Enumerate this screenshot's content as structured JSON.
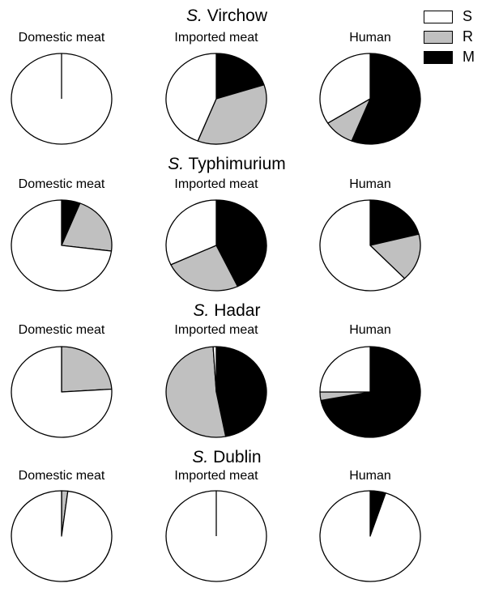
{
  "legend": [
    {
      "key": "S",
      "color": "#ffffff"
    },
    {
      "key": "R",
      "color": "#c0c0c0"
    },
    {
      "key": "M",
      "color": "#000000"
    }
  ],
  "chart_data": [
    {
      "type": "pie",
      "title_prefix": "S.",
      "title_name": "Virchow",
      "pies": [
        {
          "label": "Domestic meat",
          "slices": [
            {
              "category": "S",
              "value": 100
            },
            {
              "category": "R",
              "value": 0
            },
            {
              "category": "M",
              "value": 0
            }
          ]
        },
        {
          "label": "Imported meat",
          "slices": [
            {
              "category": "S",
              "value": 44
            },
            {
              "category": "R",
              "value": 36
            },
            {
              "category": "M",
              "value": 20
            }
          ]
        },
        {
          "label": "Human",
          "slices": [
            {
              "category": "S",
              "value": 34
            },
            {
              "category": "R",
              "value": 10
            },
            {
              "category": "M",
              "value": 56
            }
          ]
        }
      ]
    },
    {
      "type": "pie",
      "title_prefix": "S.",
      "title_name": "Typhimurium",
      "pies": [
        {
          "label": "Domestic meat",
          "slices": [
            {
              "category": "S",
              "value": 73
            },
            {
              "category": "R",
              "value": 21
            },
            {
              "category": "M",
              "value": 6
            }
          ]
        },
        {
          "label": "Imported meat",
          "slices": [
            {
              "category": "S",
              "value": 32
            },
            {
              "category": "R",
              "value": 25
            },
            {
              "category": "M",
              "value": 43
            }
          ]
        },
        {
          "label": "Human",
          "slices": [
            {
              "category": "S",
              "value": 62
            },
            {
              "category": "R",
              "value": 17
            },
            {
              "category": "M",
              "value": 21
            }
          ]
        }
      ]
    },
    {
      "type": "pie",
      "title_prefix": "S.",
      "title_name": "Hadar",
      "pies": [
        {
          "label": "Domestic meat",
          "slices": [
            {
              "category": "S",
              "value": 76
            },
            {
              "category": "R",
              "value": 24
            },
            {
              "category": "M",
              "value": 0
            }
          ]
        },
        {
          "label": "Imported meat",
          "slices": [
            {
              "category": "S",
              "value": 1
            },
            {
              "category": "R",
              "value": 52
            },
            {
              "category": "M",
              "value": 47
            }
          ]
        },
        {
          "label": "Human",
          "slices": [
            {
              "category": "S",
              "value": 25
            },
            {
              "category": "R",
              "value": 3
            },
            {
              "category": "M",
              "value": 72
            }
          ]
        }
      ]
    },
    {
      "type": "pie",
      "title_prefix": "S.",
      "title_name": "Dublin",
      "pies": [
        {
          "label": "Domestic meat",
          "slices": [
            {
              "category": "S",
              "value": 98
            },
            {
              "category": "R",
              "value": 2
            },
            {
              "category": "M",
              "value": 0
            }
          ]
        },
        {
          "label": "Imported meat",
          "slices": [
            {
              "category": "S",
              "value": 100
            },
            {
              "category": "R",
              "value": 0
            },
            {
              "category": "M",
              "value": 0
            }
          ]
        },
        {
          "label": "Human",
          "slices": [
            {
              "category": "S",
              "value": 95
            },
            {
              "category": "R",
              "value": 0
            },
            {
              "category": "M",
              "value": 5
            }
          ]
        }
      ]
    }
  ]
}
